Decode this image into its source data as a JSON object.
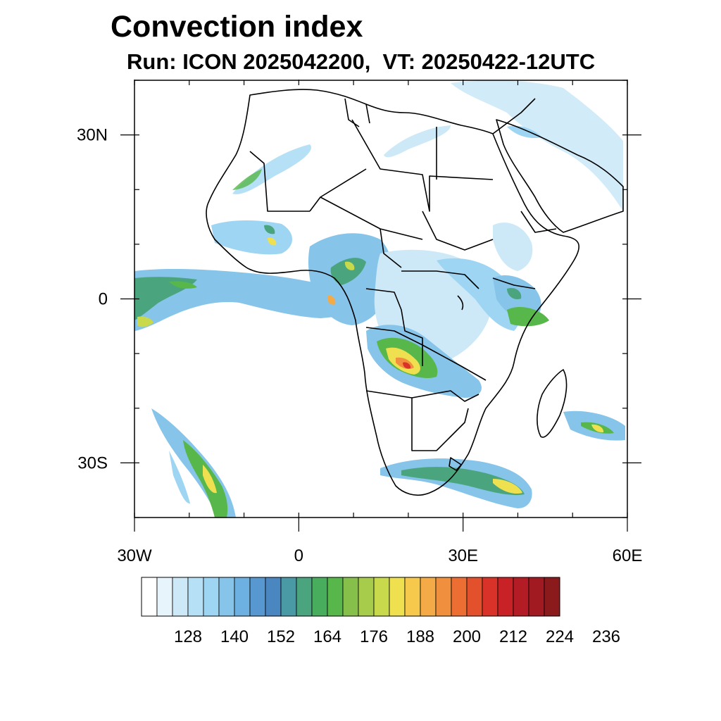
{
  "title": "Convection index",
  "subtitle": "Run: ICON 2025042200,  VT: 20250422-12UTC",
  "map": {
    "lon_range": [
      -30,
      60
    ],
    "lat_range": [
      -40,
      40
    ],
    "lat_ticks": [
      {
        "value": 30,
        "label": "30N"
      },
      {
        "value": 0,
        "label": "0"
      },
      {
        "value": -30,
        "label": "30S"
      }
    ],
    "lon_ticks": [
      {
        "value": -30,
        "label": "30W"
      },
      {
        "value": 0,
        "label": "0"
      },
      {
        "value": 30,
        "label": "30E"
      },
      {
        "value": 60,
        "label": "60E"
      }
    ]
  },
  "colorbar": {
    "labels": [
      "128",
      "140",
      "152",
      "164",
      "176",
      "188",
      "200",
      "212",
      "224",
      "236"
    ],
    "colors": [
      "#ffffff",
      "#e8f4fb",
      "#cde9f8",
      "#b6e0f6",
      "#9dd5f3",
      "#86c4ea",
      "#6cb1e1",
      "#5698cf",
      "#4a86c0",
      "#4a9aa6",
      "#4aa57f",
      "#49ad5e",
      "#58b74a",
      "#86c04a",
      "#a7cc4b",
      "#c9d94c",
      "#eee04f",
      "#f6c94c",
      "#f4ab47",
      "#f08f3e",
      "#ec6e33",
      "#e2512c",
      "#d93228",
      "#c82226",
      "#b41c25",
      "#a11a22",
      "#8b1a1c"
    ]
  }
}
